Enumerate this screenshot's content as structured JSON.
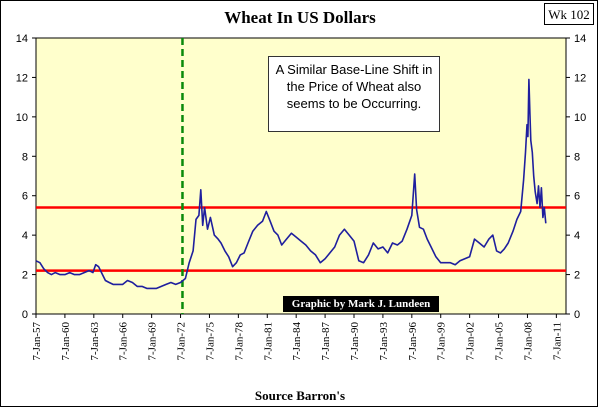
{
  "chart_data": {
    "type": "line",
    "title": "Wheat In US Dollars",
    "badge": "Wk 102",
    "source": "Source Barron's",
    "annotation": "A Similar Base-Line Shift in the Price of Wheat also seems to be Occurring.",
    "credit": "Graphic by Mark J. Lundeen",
    "ylim": [
      0,
      14
    ],
    "y_ticks": [
      0,
      2,
      4,
      6,
      8,
      10,
      12,
      14
    ],
    "x_tick_labels": [
      "7-Jan-57",
      "7-Jan-60",
      "7-Jan-63",
      "7-Jan-66",
      "7-Jan-69",
      "7-Jan-72",
      "7-Jan-75",
      "7-Jan-78",
      "7-Jan-81",
      "7-Jan-84",
      "7-Jan-87",
      "7-Jan-90",
      "7-Jan-93",
      "7-Jan-96",
      "7-Jan-99",
      "7-Jan-02",
      "7-Jan-05",
      "7-Jan-08",
      "7-Jan-11"
    ],
    "x_range": [
      1957,
      2012
    ],
    "grid": false,
    "background_color": "#ffffcc",
    "series": [
      {
        "color": "#1f1f9e",
        "points": [
          [
            1957.0,
            2.7
          ],
          [
            1957.4,
            2.6
          ],
          [
            1957.8,
            2.3
          ],
          [
            1958.2,
            2.1
          ],
          [
            1958.6,
            2.0
          ],
          [
            1959.0,
            2.1
          ],
          [
            1959.5,
            2.0
          ],
          [
            1960.0,
            2.0
          ],
          [
            1960.5,
            2.1
          ],
          [
            1961.0,
            2.0
          ],
          [
            1961.5,
            2.0
          ],
          [
            1962.0,
            2.1
          ],
          [
            1962.5,
            2.2
          ],
          [
            1962.9,
            2.1
          ],
          [
            1963.2,
            2.5
          ],
          [
            1963.5,
            2.4
          ],
          [
            1963.9,
            2.0
          ],
          [
            1964.2,
            1.7
          ],
          [
            1964.6,
            1.6
          ],
          [
            1965.0,
            1.5
          ],
          [
            1965.5,
            1.5
          ],
          [
            1966.0,
            1.5
          ],
          [
            1966.5,
            1.7
          ],
          [
            1967.0,
            1.6
          ],
          [
            1967.5,
            1.4
          ],
          [
            1968.0,
            1.4
          ],
          [
            1968.5,
            1.3
          ],
          [
            1969.0,
            1.3
          ],
          [
            1969.5,
            1.3
          ],
          [
            1970.0,
            1.4
          ],
          [
            1970.5,
            1.5
          ],
          [
            1971.0,
            1.6
          ],
          [
            1971.5,
            1.5
          ],
          [
            1972.0,
            1.6
          ],
          [
            1972.5,
            1.8
          ],
          [
            1972.9,
            2.6
          ],
          [
            1973.3,
            3.2
          ],
          [
            1973.6,
            4.8
          ],
          [
            1973.9,
            5.0
          ],
          [
            1974.1,
            6.3
          ],
          [
            1974.3,
            4.5
          ],
          [
            1974.5,
            5.4
          ],
          [
            1974.8,
            4.3
          ],
          [
            1975.1,
            4.9
          ],
          [
            1975.5,
            4.0
          ],
          [
            1975.9,
            3.8
          ],
          [
            1976.2,
            3.6
          ],
          [
            1976.6,
            3.2
          ],
          [
            1977.0,
            2.9
          ],
          [
            1977.4,
            2.4
          ],
          [
            1977.8,
            2.6
          ],
          [
            1978.2,
            3.0
          ],
          [
            1978.6,
            3.1
          ],
          [
            1979.0,
            3.6
          ],
          [
            1979.5,
            4.2
          ],
          [
            1980.0,
            4.5
          ],
          [
            1980.5,
            4.7
          ],
          [
            1980.9,
            5.2
          ],
          [
            1981.3,
            4.7
          ],
          [
            1981.7,
            4.2
          ],
          [
            1982.1,
            4.0
          ],
          [
            1982.5,
            3.5
          ],
          [
            1983.0,
            3.8
          ],
          [
            1983.5,
            4.1
          ],
          [
            1984.0,
            3.9
          ],
          [
            1984.5,
            3.7
          ],
          [
            1985.0,
            3.5
          ],
          [
            1985.5,
            3.2
          ],
          [
            1986.0,
            3.0
          ],
          [
            1986.5,
            2.6
          ],
          [
            1987.0,
            2.8
          ],
          [
            1987.5,
            3.1
          ],
          [
            1988.0,
            3.4
          ],
          [
            1988.5,
            4.0
          ],
          [
            1989.0,
            4.3
          ],
          [
            1989.5,
            4.0
          ],
          [
            1990.0,
            3.7
          ],
          [
            1990.5,
            2.7
          ],
          [
            1991.0,
            2.6
          ],
          [
            1991.5,
            3.0
          ],
          [
            1992.0,
            3.6
          ],
          [
            1992.5,
            3.3
          ],
          [
            1993.0,
            3.4
          ],
          [
            1993.5,
            3.1
          ],
          [
            1994.0,
            3.6
          ],
          [
            1994.5,
            3.5
          ],
          [
            1995.0,
            3.7
          ],
          [
            1995.5,
            4.3
          ],
          [
            1996.0,
            5.0
          ],
          [
            1996.3,
            7.1
          ],
          [
            1996.5,
            5.3
          ],
          [
            1996.8,
            4.4
          ],
          [
            1997.2,
            4.3
          ],
          [
            1997.6,
            3.8
          ],
          [
            1998.0,
            3.4
          ],
          [
            1998.5,
            2.9
          ],
          [
            1999.0,
            2.6
          ],
          [
            1999.5,
            2.6
          ],
          [
            2000.0,
            2.6
          ],
          [
            2000.5,
            2.5
          ],
          [
            2001.0,
            2.7
          ],
          [
            2001.5,
            2.8
          ],
          [
            2002.0,
            2.9
          ],
          [
            2002.5,
            3.8
          ],
          [
            2003.0,
            3.6
          ],
          [
            2003.5,
            3.4
          ],
          [
            2004.0,
            3.8
          ],
          [
            2004.4,
            4.0
          ],
          [
            2004.8,
            3.2
          ],
          [
            2005.2,
            3.1
          ],
          [
            2005.6,
            3.3
          ],
          [
            2006.0,
            3.6
          ],
          [
            2006.5,
            4.2
          ],
          [
            2006.9,
            4.8
          ],
          [
            2007.3,
            5.2
          ],
          [
            2007.6,
            6.8
          ],
          [
            2007.8,
            8.2
          ],
          [
            2007.95,
            9.6
          ],
          [
            2008.05,
            9.0
          ],
          [
            2008.15,
            11.9
          ],
          [
            2008.25,
            10.2
          ],
          [
            2008.35,
            8.8
          ],
          [
            2008.5,
            8.2
          ],
          [
            2008.65,
            7.0
          ],
          [
            2008.8,
            6.2
          ],
          [
            2009.0,
            5.6
          ],
          [
            2009.15,
            6.5
          ],
          [
            2009.3,
            5.4
          ],
          [
            2009.45,
            6.4
          ],
          [
            2009.6,
            4.9
          ],
          [
            2009.75,
            5.4
          ],
          [
            2009.9,
            4.6
          ]
        ]
      }
    ],
    "reference_lines": [
      {
        "orientation": "horizontal",
        "value": 5.4,
        "color": "#ff0000"
      },
      {
        "orientation": "horizontal",
        "value": 2.2,
        "color": "#ff0000"
      },
      {
        "orientation": "vertical",
        "value": 1972.2,
        "color": "#0a8a0a",
        "style": "dashed"
      }
    ]
  }
}
